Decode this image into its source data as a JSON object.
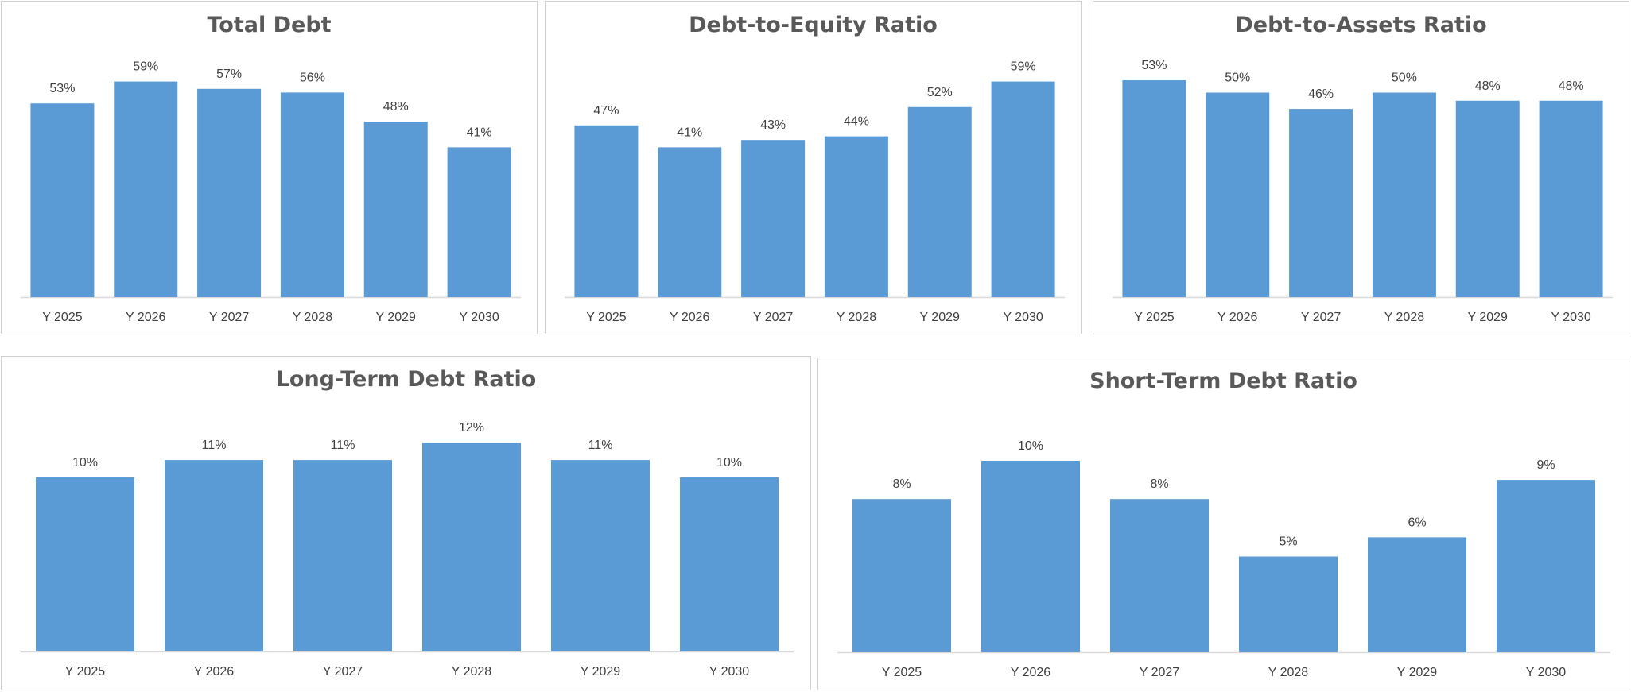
{
  "colors": {
    "bar": "#5b9bd5",
    "axis": "#d9d9d9",
    "title": "#595959",
    "text": "#404040",
    "border": "#d0d0d0"
  },
  "chart_data": [
    {
      "type": "bar",
      "title": "Total Debt",
      "categories": [
        "Y 2025",
        "Y 2026",
        "Y 2027",
        "Y 2028",
        "Y 2029",
        "Y 2030"
      ],
      "values": [
        53,
        59,
        57,
        56,
        48,
        41
      ],
      "data_labels": [
        "53%",
        "59%",
        "57%",
        "56%",
        "48%",
        "41%"
      ],
      "unit": "%",
      "grid": false,
      "legend": "none"
    },
    {
      "type": "bar",
      "title": "Debt-to-Equity Ratio",
      "categories": [
        "Y 2025",
        "Y 2026",
        "Y 2027",
        "Y 2028",
        "Y 2029",
        "Y 2030"
      ],
      "values": [
        47,
        41,
        43,
        44,
        52,
        59
      ],
      "data_labels": [
        "47%",
        "41%",
        "43%",
        "44%",
        "52%",
        "59%"
      ],
      "unit": "%",
      "grid": false,
      "legend": "none"
    },
    {
      "type": "bar",
      "title": "Debt-to-Assets Ratio",
      "categories": [
        "Y 2025",
        "Y 2026",
        "Y 2027",
        "Y 2028",
        "Y 2029",
        "Y 2030"
      ],
      "values": [
        53,
        50,
        46,
        50,
        48,
        48
      ],
      "data_labels": [
        "53%",
        "50%",
        "46%",
        "50%",
        "48%",
        "48%"
      ],
      "unit": "%",
      "grid": false,
      "legend": "none"
    },
    {
      "type": "bar",
      "title": "Long-Term Debt Ratio",
      "categories": [
        "Y 2025",
        "Y 2026",
        "Y 2027",
        "Y 2028",
        "Y 2029",
        "Y 2030"
      ],
      "values": [
        10,
        11,
        11,
        12,
        11,
        10
      ],
      "data_labels": [
        "10%",
        "11%",
        "11%",
        "12%",
        "11%",
        "10%"
      ],
      "unit": "%",
      "grid": false,
      "legend": "none"
    },
    {
      "type": "bar",
      "title": "Short-Term Debt Ratio",
      "categories": [
        "Y 2025",
        "Y 2026",
        "Y 2027",
        "Y 2028",
        "Y 2029",
        "Y 2030"
      ],
      "values": [
        8,
        10,
        8,
        5,
        6,
        9
      ],
      "data_labels": [
        "8%",
        "10%",
        "8%",
        "5%",
        "6%",
        "9%"
      ],
      "unit": "%",
      "grid": false,
      "legend": "none"
    }
  ]
}
